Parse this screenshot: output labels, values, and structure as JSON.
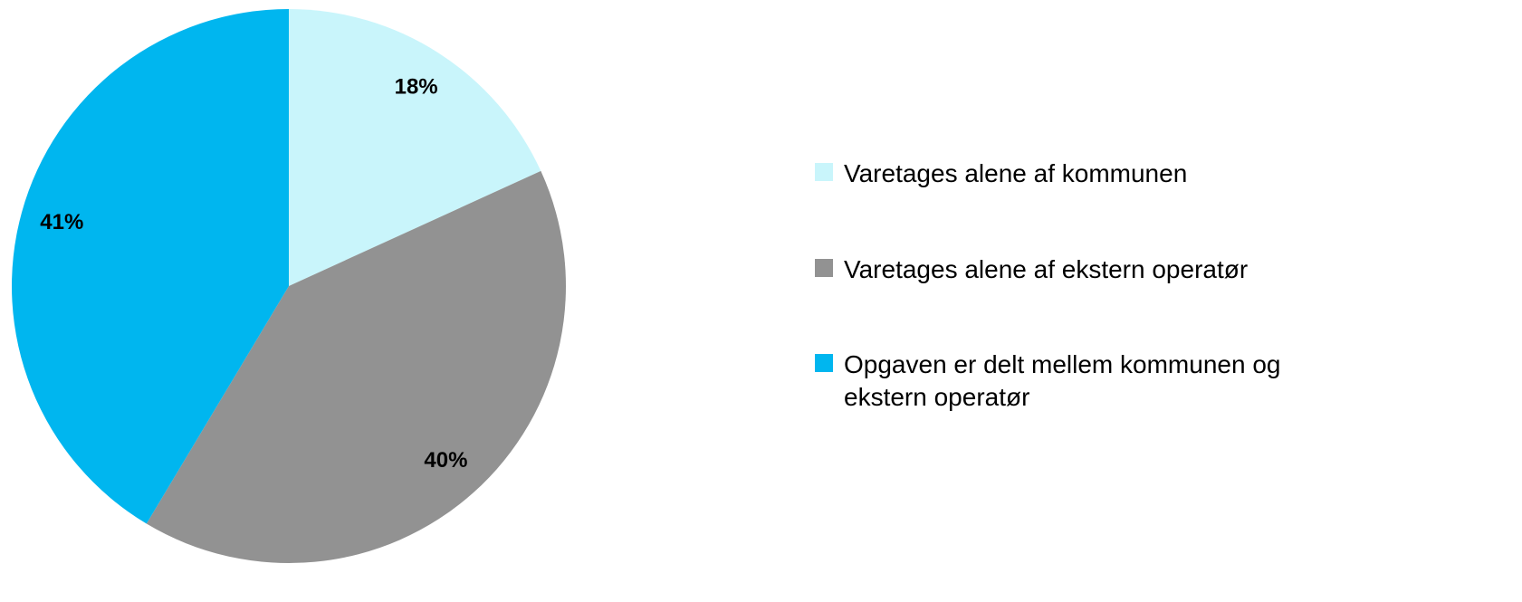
{
  "chart_data": {
    "type": "pie",
    "categories": [
      "Varetages alene af kommunen",
      "Varetages alene af ekstern operatør",
      "Opgaven er delt mellem kommunen og ekstern operatør"
    ],
    "values": [
      18,
      40,
      41
    ],
    "value_labels": [
      "18%",
      "40%",
      "41%"
    ],
    "colors": [
      "#c9f5fb",
      "#929292",
      "#00b6ef"
    ],
    "legend": "right"
  }
}
